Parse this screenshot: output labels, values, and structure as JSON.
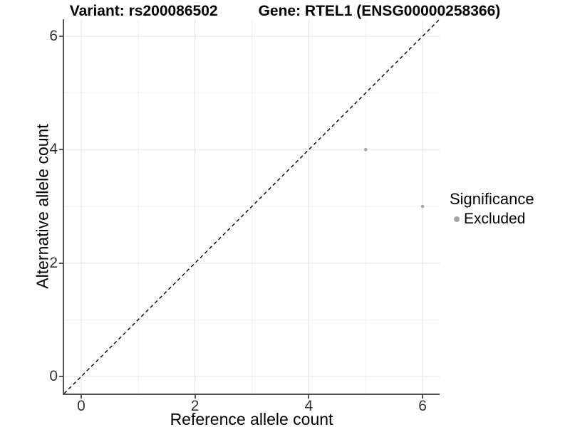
{
  "chart_data": {
    "type": "scatter",
    "title_variant": "Variant: rs200086502",
    "title_gene": "Gene: RTEL1 (ENSG00000258366)",
    "xlabel": "Reference allele count",
    "ylabel": "Alternative allele count",
    "xlim": [
      -0.3,
      6.3
    ],
    "ylim": [
      -0.3,
      6.3
    ],
    "xticks": [
      0,
      2,
      4,
      6
    ],
    "yticks": [
      0,
      2,
      4,
      6
    ],
    "minor_xticks": [
      1,
      3,
      5
    ],
    "minor_yticks": [
      1,
      3,
      5
    ],
    "grid": true,
    "identity_line": {
      "type": "dashed",
      "color": "#000000",
      "from": -0.3,
      "to": 6.3
    },
    "series": [
      {
        "name": "Excluded",
        "color": "#a6a6a6",
        "points": [
          [
            5,
            4
          ],
          [
            6,
            3
          ]
        ]
      }
    ],
    "legend": {
      "position": "right",
      "title": "Significance",
      "items": [
        {
          "label": "Excluded",
          "color": "#a6a6a6"
        }
      ]
    },
    "colors": {
      "axis": "#545454",
      "grid_major": "#e2e2e2",
      "grid_minor": "#efefef",
      "tick_label": "#333333",
      "point": "#a6a6a6"
    }
  }
}
